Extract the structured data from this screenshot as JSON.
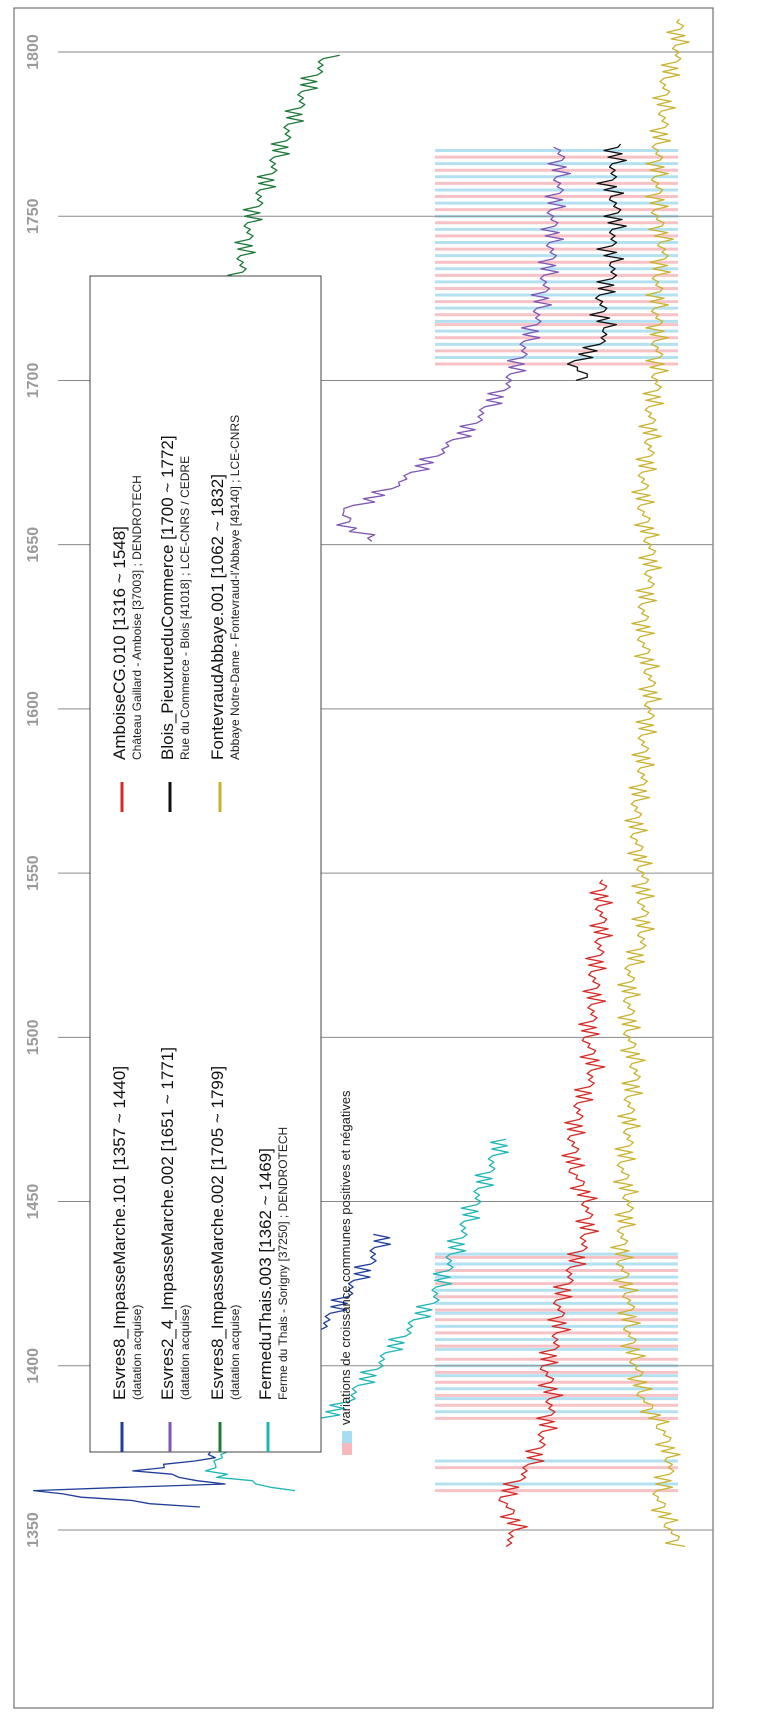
{
  "chart_data": {
    "type": "line",
    "orientation": "rotated-90-ccw",
    "xlabel": "",
    "ylabel": "",
    "xlim": [
      1340,
      1815
    ],
    "x_ticks": [
      1350,
      1400,
      1450,
      1500,
      1550,
      1600,
      1650,
      1700,
      1750,
      1800
    ],
    "grid": true,
    "legend_position": "top-left",
    "band_label": "variations de croissance communes positives et négatives",
    "band_colors": {
      "positive": "#a8dcf0",
      "negative": "#f6b8bd"
    },
    "band_groups": [
      {
        "range": [
          1363,
          1436
        ],
        "dense_range": [
          1384,
          1436
        ],
        "positive_years": [
          1364,
          1371,
          1386,
          1390,
          1393,
          1397,
          1400,
          1405,
          1408,
          1412,
          1416,
          1419,
          1423,
          1427,
          1431,
          1434
        ],
        "negative_years": [
          1362,
          1369,
          1384,
          1388,
          1391,
          1395,
          1398,
          1402,
          1406,
          1410,
          1414,
          1417,
          1421,
          1425,
          1429,
          1433
        ]
      },
      {
        "range": [
          1705,
          1771
        ],
        "dense_range": [
          1705,
          1771
        ],
        "positive_years": [
          1707,
          1711,
          1715,
          1718,
          1722,
          1726,
          1730,
          1734,
          1738,
          1742,
          1746,
          1750,
          1754,
          1758,
          1762,
          1766,
          1770
        ],
        "negative_years": [
          1705,
          1709,
          1713,
          1717,
          1720,
          1724,
          1728,
          1732,
          1736,
          1740,
          1744,
          1748,
          1752,
          1756,
          1760,
          1764,
          1768
        ]
      }
    ],
    "series": [
      {
        "name": "Esvres8_ImpasseMarche.101 [1357 ~ 1440]",
        "detail": "(datation acquise)",
        "color": "#1f3d99",
        "start": 1357,
        "end": 1440,
        "points": [
          [
            1357,
            0.25
          ],
          [
            1362,
            0.02
          ],
          [
            1364,
            0.3
          ],
          [
            1368,
            0.18
          ],
          [
            1372,
            0.28
          ],
          [
            1378,
            0.28
          ],
          [
            1384,
            0.31
          ],
          [
            1390,
            0.34
          ],
          [
            1396,
            0.36
          ],
          [
            1402,
            0.4
          ],
          [
            1408,
            0.42
          ],
          [
            1414,
            0.45
          ],
          [
            1420,
            0.47
          ],
          [
            1426,
            0.49
          ],
          [
            1432,
            0.51
          ],
          [
            1440,
            0.53
          ]
        ]
      },
      {
        "name": "Esvres2_4_ImpasseMarche.002 [1651 ~ 1771]",
        "detail": "(datation acquise)",
        "color": "#7e57b5",
        "start": 1651,
        "end": 1771,
        "points": [
          [
            1651,
            0.52
          ],
          [
            1655,
            0.48
          ],
          [
            1660,
            0.47
          ],
          [
            1665,
            0.52
          ],
          [
            1670,
            0.56
          ],
          [
            1675,
            0.59
          ],
          [
            1680,
            0.62
          ],
          [
            1685,
            0.65
          ],
          [
            1690,
            0.67
          ],
          [
            1695,
            0.69
          ],
          [
            1700,
            0.71
          ],
          [
            1705,
            0.72
          ],
          [
            1710,
            0.73
          ],
          [
            1715,
            0.74
          ],
          [
            1720,
            0.75
          ],
          [
            1730,
            0.76
          ],
          [
            1740,
            0.77
          ],
          [
            1750,
            0.77
          ],
          [
            1760,
            0.78
          ],
          [
            1771,
            0.78
          ]
        ]
      },
      {
        "name": "Esvres8_ImpasseMarche.002 [1705 ~ 1799]",
        "detail": "(datation acquise)",
        "color": "#1e7a3a",
        "start": 1705,
        "end": 1799,
        "points": [
          [
            1705,
            0.35
          ],
          [
            1710,
            0.3
          ],
          [
            1715,
            0.34
          ],
          [
            1720,
            0.32
          ],
          [
            1730,
            0.32
          ],
          [
            1740,
            0.33
          ],
          [
            1750,
            0.34
          ],
          [
            1760,
            0.36
          ],
          [
            1770,
            0.38
          ],
          [
            1780,
            0.4
          ],
          [
            1790,
            0.42
          ],
          [
            1799,
            0.45
          ]
        ]
      },
      {
        "name": "FermeduThais.003 [1362 ~ 1469]",
        "detail": "Ferme du Thais - Sorigny [37250] ; DENDROTECH",
        "color": "#1fb5b5",
        "start": 1362,
        "end": 1469,
        "points": [
          [
            1362,
            0.4
          ],
          [
            1366,
            0.3
          ],
          [
            1370,
            0.28
          ],
          [
            1375,
            0.32
          ],
          [
            1380,
            0.4
          ],
          [
            1385,
            0.45
          ],
          [
            1390,
            0.48
          ],
          [
            1395,
            0.5
          ],
          [
            1400,
            0.52
          ],
          [
            1405,
            0.54
          ],
          [
            1410,
            0.56
          ],
          [
            1415,
            0.58
          ],
          [
            1420,
            0.6
          ],
          [
            1425,
            0.61
          ],
          [
            1430,
            0.62
          ],
          [
            1440,
            0.64
          ],
          [
            1450,
            0.66
          ],
          [
            1460,
            0.68
          ],
          [
            1469,
            0.7
          ]
        ]
      },
      {
        "name": "AmboiseCG.010 [1316 ~ 1548]",
        "detail": "Château Gaillard - Amboise [37003] ; DENDROTECH",
        "color": "#d52a26",
        "start": 1316,
        "end": 1548,
        "points": [
          [
            1345,
            0.7
          ],
          [
            1350,
            0.72
          ],
          [
            1360,
            0.7
          ],
          [
            1370,
            0.74
          ],
          [
            1380,
            0.76
          ],
          [
            1390,
            0.77
          ],
          [
            1400,
            0.76
          ],
          [
            1410,
            0.78
          ],
          [
            1420,
            0.78
          ],
          [
            1430,
            0.8
          ],
          [
            1440,
            0.82
          ],
          [
            1450,
            0.82
          ],
          [
            1460,
            0.8
          ],
          [
            1470,
            0.8
          ],
          [
            1480,
            0.81
          ],
          [
            1490,
            0.83
          ],
          [
            1500,
            0.82
          ],
          [
            1510,
            0.83
          ],
          [
            1520,
            0.83
          ],
          [
            1530,
            0.84
          ],
          [
            1540,
            0.84
          ],
          [
            1548,
            0.84
          ]
        ]
      },
      {
        "name": "Blois_PieuxrueduCommerce [1700 ~ 1772]",
        "detail": "Rue du Commerce - Blois [41018] ; LCE-CNRS / CEDRE",
        "color": "#111111",
        "start": 1700,
        "end": 1772,
        "points": [
          [
            1700,
            0.82
          ],
          [
            1705,
            0.8
          ],
          [
            1710,
            0.83
          ],
          [
            1715,
            0.85
          ],
          [
            1720,
            0.84
          ],
          [
            1725,
            0.84
          ],
          [
            1730,
            0.85
          ],
          [
            1735,
            0.86
          ],
          [
            1740,
            0.85
          ],
          [
            1745,
            0.86
          ],
          [
            1750,
            0.86
          ],
          [
            1755,
            0.86
          ],
          [
            1760,
            0.85
          ],
          [
            1765,
            0.86
          ],
          [
            1772,
            0.86
          ]
        ]
      },
      {
        "name": "FontevraudAbbaye.001 [1062 ~ 1832]",
        "detail": "Abbaye Notre-Dame - Fontevraud-l'Abbaye [49140] ; LCE-CNRS",
        "color": "#c8b331",
        "start": 1062,
        "end": 1832,
        "points": [
          [
            1345,
            0.95
          ],
          [
            1350,
            0.94
          ],
          [
            1360,
            0.92
          ],
          [
            1370,
            0.94
          ],
          [
            1380,
            0.93
          ],
          [
            1390,
            0.9
          ],
          [
            1400,
            0.89
          ],
          [
            1410,
            0.88
          ],
          [
            1420,
            0.88
          ],
          [
            1430,
            0.87
          ],
          [
            1440,
            0.87
          ],
          [
            1450,
            0.88
          ],
          [
            1460,
            0.87
          ],
          [
            1470,
            0.88
          ],
          [
            1480,
            0.88
          ],
          [
            1490,
            0.89
          ],
          [
            1500,
            0.88
          ],
          [
            1510,
            0.88
          ],
          [
            1520,
            0.88
          ],
          [
            1530,
            0.9
          ],
          [
            1540,
            0.9
          ],
          [
            1550,
            0.9
          ],
          [
            1560,
            0.89
          ],
          [
            1570,
            0.89
          ],
          [
            1580,
            0.9
          ],
          [
            1590,
            0.9
          ],
          [
            1600,
            0.91
          ],
          [
            1610,
            0.91
          ],
          [
            1620,
            0.9
          ],
          [
            1630,
            0.9
          ],
          [
            1640,
            0.91
          ],
          [
            1650,
            0.91
          ],
          [
            1660,
            0.9
          ],
          [
            1670,
            0.9
          ],
          [
            1680,
            0.91
          ],
          [
            1690,
            0.91
          ],
          [
            1700,
            0.92
          ],
          [
            1710,
            0.92
          ],
          [
            1720,
            0.92
          ],
          [
            1730,
            0.92
          ],
          [
            1740,
            0.93
          ],
          [
            1750,
            0.92
          ],
          [
            1760,
            0.92
          ],
          [
            1770,
            0.92
          ],
          [
            1780,
            0.93
          ],
          [
            1790,
            0.93
          ],
          [
            1800,
            0.95
          ],
          [
            1810,
            0.95
          ]
        ]
      }
    ]
  }
}
